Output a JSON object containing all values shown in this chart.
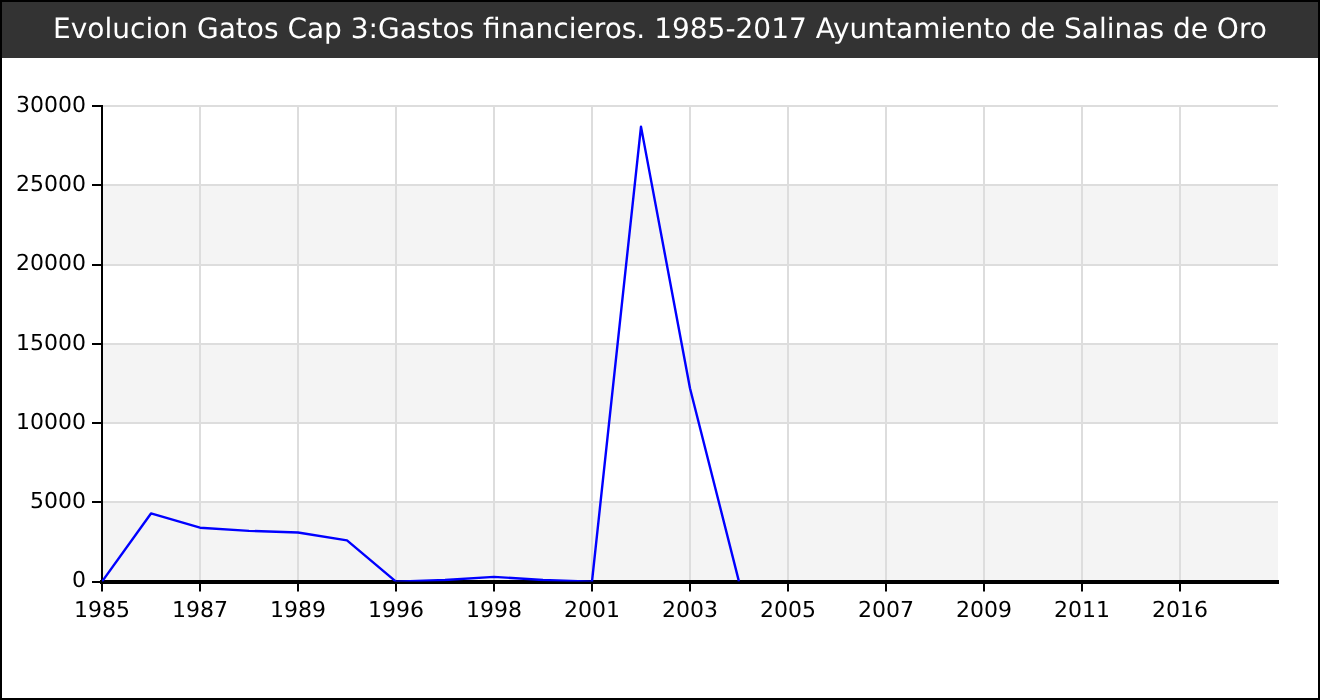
{
  "chart_data": {
    "type": "line",
    "title": "Evolucion Gatos Cap 3:Gastos financieros. 1985-2017 Ayuntamiento de Salinas de Oro",
    "categories": [
      "1985",
      null,
      "1987",
      null,
      "1989",
      null,
      "1996",
      null,
      "1998",
      null,
      "2001",
      null,
      "2003",
      null,
      "2005",
      null,
      "2007",
      null,
      "2009",
      null,
      "2011",
      null,
      "2016",
      null
    ],
    "series": [
      {
        "color": "#0000ff",
        "values": [
          0,
          4300,
          3400,
          3200,
          3100,
          2600,
          0,
          100,
          300,
          100,
          0,
          28700,
          12200,
          0,
          null,
          null,
          null,
          null,
          null,
          null,
          null,
          null,
          null,
          null
        ]
      }
    ],
    "ylim": [
      0,
      30000
    ],
    "yticks": [
      0,
      5000,
      10000,
      15000,
      20000,
      25000,
      30000
    ],
    "grid": true,
    "legend": false,
    "marker": "none",
    "line_style": "solid"
  }
}
